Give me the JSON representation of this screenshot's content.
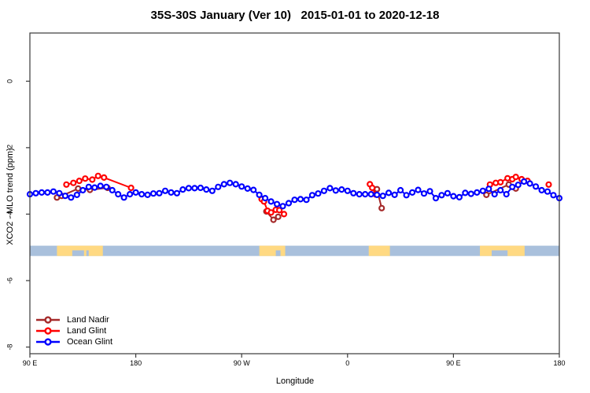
{
  "title": "35S-30S January (Ver 10)   2015-01-01 to 2020-12-18",
  "legend": {
    "items": [
      {
        "label": "Land Nadir"
      },
      {
        "label": "Land Glint"
      },
      {
        "label": "Ocean Glint"
      }
    ]
  },
  "chart_data": {
    "type": "scatter",
    "title": "35S-30S January (Ver 10)   2015-01-01 to 2020-12-18",
    "xlabel": "Longitude",
    "ylabel": "XCO2 - MLO trend (ppm)",
    "x_axis": {
      "range": [
        90,
        540
      ],
      "ticks": [
        {
          "pos": 90,
          "label": "90 E"
        },
        {
          "pos": 180,
          "label": "180"
        },
        {
          "pos": 270,
          "label": "90 W"
        },
        {
          "pos": 360,
          "label": "0"
        },
        {
          "pos": 450,
          "label": "90 E"
        },
        {
          "pos": 540,
          "label": "180"
        }
      ]
    },
    "y_axis": {
      "range": [
        -8.2,
        1.45
      ],
      "ticks": [
        {
          "pos": 0,
          "label": "0"
        },
        {
          "pos": -2,
          "label": "-2"
        },
        {
          "pos": -4,
          "label": "-4"
        },
        {
          "pos": -6,
          "label": "-6"
        },
        {
          "pos": -8,
          "label": "-8"
        }
      ]
    },
    "series": [
      {
        "name": "Land Nadir",
        "color": "#A52A2A",
        "marker": "open-circle",
        "segments": [
          [
            [
              113,
              -3.5
            ],
            [
              117,
              -3.45
            ],
            [
              131,
              -3.23
            ],
            [
              141,
              -3.27
            ],
            [
              156,
              -3.21
            ]
          ],
          [
            [
              291,
              -3.92
            ],
            [
              297,
              -4.17
            ],
            [
              301,
              -4.08
            ]
          ],
          [
            [
              385,
              -3.25
            ],
            [
              389,
              -3.82
            ]
          ],
          [
            [
              478,
              -3.42
            ],
            [
              497,
              -3.11
            ],
            [
              503,
              -3.23
            ]
          ]
        ]
      },
      {
        "name": "Land Glint",
        "color": "#FF0000",
        "marker": "open-circle",
        "segments": [
          [
            [
              121,
              -3.11
            ],
            [
              127,
              -3.06
            ],
            [
              132,
              -3.0
            ],
            [
              137,
              -2.93
            ],
            [
              143,
              -2.96
            ],
            [
              148,
              -2.85
            ],
            [
              153,
              -2.9
            ],
            [
              176,
              -3.21
            ]
          ],
          [
            [
              287,
              -3.55
            ],
            [
              289,
              -3.62
            ],
            [
              292,
              -3.9
            ],
            [
              295,
              -3.95
            ],
            [
              299,
              -3.87
            ],
            [
              302,
              -3.88
            ],
            [
              306,
              -4.0
            ]
          ],
          [
            [
              379,
              -3.1
            ],
            [
              381,
              -3.21
            ],
            [
              384,
              -3.41
            ]
          ],
          [
            [
              481,
              -3.11
            ],
            [
              486,
              -3.06
            ],
            [
              490,
              -3.04
            ],
            [
              496,
              -2.92
            ],
            [
              500,
              -2.95
            ],
            [
              503,
              -2.88
            ],
            [
              508,
              -2.95
            ],
            [
              513,
              -3.0
            ]
          ],
          [
            [
              531,
              -3.11
            ]
          ]
        ]
      },
      {
        "name": "Ocean Glint",
        "color": "#0000FF",
        "marker": "open-circle",
        "segments": [
          [
            [
              90,
              -3.4
            ],
            [
              95,
              -3.37
            ],
            [
              100,
              -3.35
            ],
            [
              105,
              -3.35
            ],
            [
              110,
              -3.32
            ],
            [
              115,
              -3.37
            ],
            [
              120,
              -3.45
            ],
            [
              125,
              -3.5
            ],
            [
              130,
              -3.42
            ],
            [
              135,
              -3.28
            ],
            [
              140,
              -3.18
            ],
            [
              145,
              -3.2
            ],
            [
              150,
              -3.15
            ],
            [
              155,
              -3.18
            ],
            [
              160,
              -3.28
            ],
            [
              165,
              -3.4
            ],
            [
              170,
              -3.5
            ],
            [
              175,
              -3.4
            ],
            [
              180,
              -3.35
            ],
            [
              185,
              -3.4
            ],
            [
              190,
              -3.42
            ],
            [
              195,
              -3.38
            ],
            [
              200,
              -3.37
            ],
            [
              205,
              -3.3
            ],
            [
              210,
              -3.35
            ],
            [
              215,
              -3.37
            ],
            [
              220,
              -3.26
            ],
            [
              225,
              -3.22
            ],
            [
              230,
              -3.22
            ],
            [
              235,
              -3.21
            ],
            [
              240,
              -3.26
            ],
            [
              245,
              -3.3
            ],
            [
              250,
              -3.18
            ],
            [
              255,
              -3.1
            ],
            [
              260,
              -3.06
            ],
            [
              265,
              -3.1
            ],
            [
              270,
              -3.17
            ],
            [
              275,
              -3.23
            ],
            [
              280,
              -3.27
            ],
            [
              285,
              -3.42
            ],
            [
              290,
              -3.52
            ],
            [
              295,
              -3.62
            ],
            [
              300,
              -3.7
            ],
            [
              305,
              -3.76
            ],
            [
              310,
              -3.67
            ],
            [
              315,
              -3.57
            ],
            [
              320,
              -3.55
            ],
            [
              325,
              -3.57
            ],
            [
              330,
              -3.43
            ],
            [
              335,
              -3.38
            ],
            [
              340,
              -3.3
            ],
            [
              345,
              -3.22
            ],
            [
              350,
              -3.29
            ],
            [
              355,
              -3.26
            ],
            [
              360,
              -3.3
            ],
            [
              365,
              -3.37
            ],
            [
              370,
              -3.4
            ],
            [
              375,
              -3.4
            ],
            [
              380,
              -3.4
            ],
            [
              385,
              -3.42
            ],
            [
              390,
              -3.45
            ],
            [
              395,
              -3.36
            ],
            [
              400,
              -3.42
            ],
            [
              405,
              -3.28
            ],
            [
              410,
              -3.43
            ],
            [
              415,
              -3.35
            ],
            [
              420,
              -3.27
            ],
            [
              425,
              -3.38
            ],
            [
              430,
              -3.31
            ],
            [
              435,
              -3.52
            ],
            [
              440,
              -3.43
            ],
            [
              445,
              -3.37
            ],
            [
              450,
              -3.46
            ],
            [
              455,
              -3.49
            ],
            [
              460,
              -3.36
            ],
            [
              465,
              -3.39
            ],
            [
              470,
              -3.35
            ],
            [
              475,
              -3.3
            ],
            [
              480,
              -3.24
            ],
            [
              485,
              -3.4
            ],
            [
              490,
              -3.28
            ],
            [
              495,
              -3.4
            ],
            [
              500,
              -3.18
            ],
            [
              505,
              -3.12
            ],
            [
              510,
              -3.02
            ],
            [
              515,
              -3.08
            ],
            [
              520,
              -3.17
            ],
            [
              525,
              -3.28
            ],
            [
              530,
              -3.32
            ],
            [
              535,
              -3.43
            ],
            [
              540,
              -3.52
            ]
          ]
        ]
      }
    ],
    "map_band": {
      "ocean_color": "#A9C0DC",
      "land_color": "#FFD982",
      "y_top": -4.95,
      "y_bottom": -5.26,
      "land_patches": [
        {
          "name": "Australia",
          "x": [
            113,
            152
          ],
          "coast_notches": [
            [
              126,
              136
            ],
            [
              138,
              140
            ]
          ]
        },
        {
          "name": "South America",
          "x": [
            285,
            307
          ],
          "coast_notches": [
            [
              299,
              303
            ]
          ]
        },
        {
          "name": "Southern Africa",
          "x": [
            378,
            396
          ],
          "coast_notches": []
        },
        {
          "name": "Australia",
          "x": [
            472.5,
            510.5
          ],
          "coast_notches": [
            [
              482.5,
              496
            ]
          ]
        }
      ]
    }
  }
}
